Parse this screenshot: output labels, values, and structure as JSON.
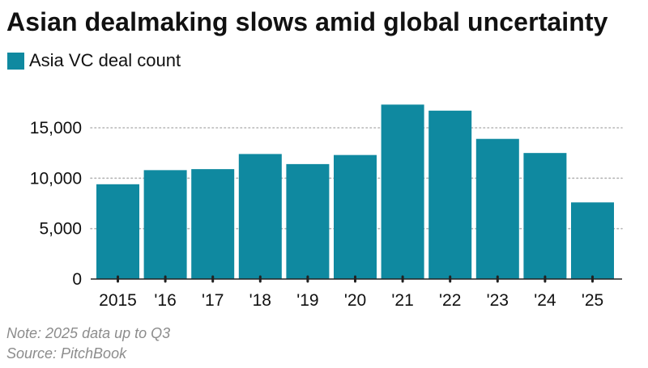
{
  "chart_data": {
    "type": "bar",
    "title": "Asian dealmaking slows amid global uncertainty",
    "legend": [
      "Asia VC deal count"
    ],
    "legend_position": "top-left",
    "categories": [
      "2015",
      "'16",
      "'17",
      "'18",
      "'19",
      "'20",
      "'21",
      "'22",
      "'23",
      "'24",
      "'25"
    ],
    "series": [
      {
        "name": "Asia VC deal count",
        "color": "#0f89a0",
        "values": [
          9400,
          10800,
          10900,
          12400,
          11400,
          12300,
          17300,
          16700,
          13900,
          12500,
          7600
        ]
      }
    ],
    "ylim": [
      0,
      17500
    ],
    "yticks": [
      0,
      5000,
      10000,
      15000
    ],
    "ytick_labels": [
      "0",
      "5,000",
      "10,000",
      "15,000"
    ],
    "grid": "horizontal-dotted",
    "xlabel": "",
    "ylabel": ""
  },
  "notes": {
    "note": "Note: 2025 data up to Q3",
    "source": "Source: PitchBook"
  },
  "colors": {
    "bar": "#0f89a0",
    "grid": "#b5b5b5",
    "axis": "#222222",
    "footnote": "#8c8c8c"
  }
}
